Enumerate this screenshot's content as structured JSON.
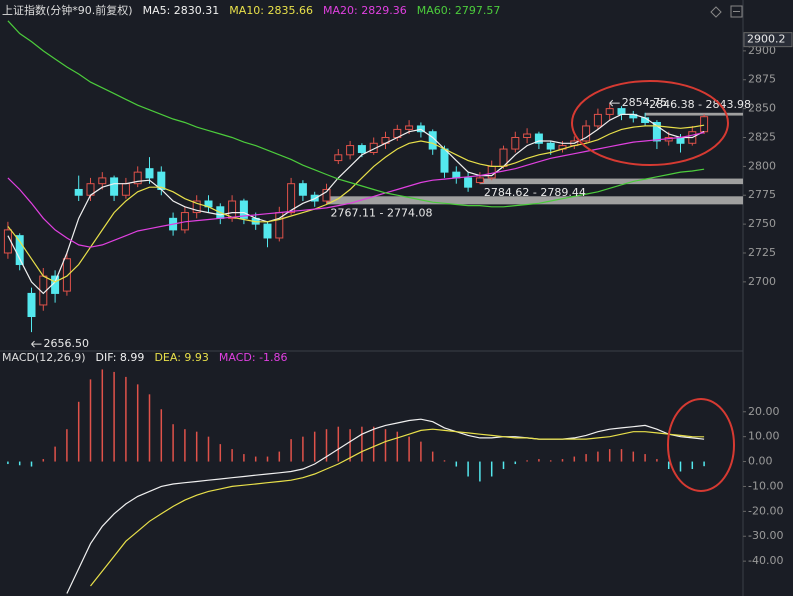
{
  "chart_data": [
    {
      "type": "candlestick",
      "title": "上证指数(分钟*90.前复权)",
      "up_color": "#e0524a",
      "down_color": "#54e8ee",
      "open": [
        2725,
        2740,
        2690,
        2680,
        2705,
        2692,
        2780,
        2775,
        2785,
        2790,
        2775,
        2785,
        2798,
        2795,
        2755,
        2745,
        2760,
        2770,
        2765,
        2755,
        2770,
        2755,
        2750,
        2738,
        2760,
        2785,
        2775,
        2770,
        2805,
        2810,
        2818,
        2812,
        2820,
        2825,
        2832,
        2835,
        2830,
        2815,
        2795,
        2790,
        2786,
        2790,
        2800,
        2815,
        2825,
        2828,
        2820,
        2815,
        2818,
        2822,
        2835,
        2845,
        2850,
        2845,
        2842,
        2838,
        2822,
        2825,
        2820,
        2830
      ],
      "high": [
        2752,
        2742,
        2695,
        2712,
        2710,
        2726,
        2792,
        2790,
        2795,
        2792,
        2790,
        2800,
        2808,
        2800,
        2760,
        2765,
        2775,
        2775,
        2768,
        2775,
        2772,
        2760,
        2752,
        2765,
        2790,
        2788,
        2778,
        2785,
        2815,
        2822,
        2820,
        2825,
        2830,
        2836,
        2840,
        2838,
        2832,
        2818,
        2800,
        2795,
        2795,
        2805,
        2818,
        2830,
        2833,
        2830,
        2822,
        2822,
        2826,
        2840,
        2850,
        2854.75,
        2852,
        2848,
        2846.38,
        2840,
        2830,
        2828,
        2835,
        2845
      ],
      "low": [
        2720,
        2710,
        2656.5,
        2675,
        2682,
        2688,
        2770,
        2770,
        2780,
        2770,
        2772,
        2782,
        2785,
        2775,
        2740,
        2742,
        2755,
        2760,
        2750,
        2752,
        2750,
        2745,
        2730,
        2735,
        2758,
        2770,
        2765,
        2767.11,
        2802,
        2806,
        2808,
        2810,
        2815,
        2822,
        2828,
        2825,
        2810,
        2790,
        2785,
        2778,
        2784.62,
        2788,
        2798,
        2812,
        2820,
        2815,
        2810,
        2812,
        2815,
        2820,
        2832,
        2840,
        2840,
        2838,
        2835,
        2815,
        2818,
        2812,
        2818,
        2828
      ],
      "close": [
        2745,
        2715,
        2670,
        2705,
        2690,
        2720,
        2775,
        2785,
        2790,
        2775,
        2785,
        2795,
        2790,
        2780,
        2745,
        2760,
        2770,
        2765,
        2755,
        2770,
        2755,
        2750,
        2738,
        2760,
        2785,
        2775,
        2770,
        2780,
        2810,
        2818,
        2812,
        2820,
        2825,
        2832,
        2835,
        2830,
        2815,
        2795,
        2790,
        2782,
        2790,
        2800,
        2815,
        2825,
        2828,
        2820,
        2815,
        2818,
        2822,
        2835,
        2845,
        2850,
        2845,
        2842,
        2838,
        2822,
        2825,
        2820,
        2830,
        2843
      ],
      "series": [
        {
          "name": "MA5: 2830.31",
          "color": "#f0f0f0",
          "values": [
            2740,
            2720,
            2700,
            2690,
            2700,
            2725,
            2755,
            2775,
            2782,
            2785,
            2785,
            2787,
            2788,
            2780,
            2770,
            2765,
            2762,
            2760,
            2758,
            2760,
            2760,
            2755,
            2752,
            2755,
            2762,
            2768,
            2772,
            2778,
            2790,
            2800,
            2810,
            2815,
            2820,
            2825,
            2830,
            2832,
            2825,
            2815,
            2805,
            2795,
            2792,
            2792,
            2800,
            2810,
            2818,
            2822,
            2822,
            2820,
            2820,
            2825,
            2832,
            2840,
            2845,
            2845,
            2842,
            2835,
            2828,
            2825,
            2825,
            2830.31
          ]
        },
        {
          "name": "MA10: 2835.66",
          "color": "#e8e04a",
          "values": [
            2748,
            2735,
            2720,
            2705,
            2700,
            2705,
            2715,
            2730,
            2745,
            2760,
            2770,
            2778,
            2782,
            2782,
            2778,
            2772,
            2768,
            2765,
            2760,
            2756,
            2754,
            2752,
            2752,
            2754,
            2757,
            2760,
            2763,
            2767,
            2772,
            2780,
            2790,
            2800,
            2808,
            2815,
            2820,
            2822,
            2820,
            2815,
            2810,
            2805,
            2802,
            2800,
            2800,
            2803,
            2807,
            2810,
            2812,
            2815,
            2818,
            2820,
            2823,
            2828,
            2832,
            2834,
            2835,
            2835,
            2834,
            2833,
            2834,
            2835.66
          ]
        },
        {
          "name": "MA20: 2829.36",
          "color": "#e040e0",
          "values": [
            2790,
            2780,
            2768,
            2755,
            2745,
            2738,
            2732,
            2730,
            2732,
            2736,
            2740,
            2744,
            2746,
            2748,
            2750,
            2752,
            2753,
            2754,
            2755,
            2756,
            2757,
            2758,
            2759,
            2760,
            2761,
            2762,
            2763,
            2764,
            2766,
            2768,
            2771,
            2774,
            2777,
            2780,
            2783,
            2786,
            2788,
            2789,
            2790,
            2791,
            2792,
            2794,
            2796,
            2798,
            2801,
            2804,
            2807,
            2809,
            2811,
            2813,
            2815,
            2817,
            2819,
            2821,
            2822,
            2823,
            2824,
            2825,
            2827,
            2829.36
          ]
        },
        {
          "name": "MA60: 2797.57",
          "color": "#4ccc3c",
          "values": [
            2926,
            2915,
            2908,
            2900,
            2893,
            2886,
            2880,
            2873,
            2868,
            2863,
            2858,
            2853,
            2849,
            2845,
            2841,
            2838,
            2834,
            2831,
            2828,
            2825,
            2821,
            2818,
            2814,
            2810,
            2806,
            2801,
            2797,
            2793,
            2789,
            2786,
            2783,
            2780,
            2777,
            2775,
            2773,
            2771,
            2769,
            2768,
            2767,
            2766,
            2766,
            2765,
            2765,
            2766,
            2767,
            2768,
            2770,
            2772,
            2774,
            2776,
            2778,
            2781,
            2784,
            2787,
            2789,
            2791,
            2793,
            2795,
            2796,
            2797.57
          ]
        }
      ],
      "ylim": [
        2641,
        2925
      ],
      "yticks": [
        2700,
        2725,
        2750,
        2775,
        2800,
        2825,
        2850,
        2875,
        2900
      ],
      "price_marker": 2900.2,
      "annotations": [
        {
          "label": "2656.50",
          "value": 2656.5
        },
        {
          "label": "2854.75",
          "value": 2854.75
        }
      ],
      "zones": [
        {
          "label": "2846.38 - 2843.98",
          "values": [
            2846.38,
            2843.98
          ]
        },
        {
          "label": "2784.62 - 2789.44",
          "values": [
            2784.62,
            2789.44
          ]
        },
        {
          "label": "2767.11 - 2774.08",
          "values": [
            2767.11,
            2774.08
          ]
        }
      ]
    },
    {
      "type": "macd",
      "title": "MACD(12,26,9)",
      "up_color": "#e0524a",
      "down_color": "#54e8ee",
      "series": [
        {
          "name": "DIF: 8.99",
          "color": "#f0f0f0",
          "kind": "line",
          "values": [
            null,
            null,
            null,
            null,
            null,
            -53,
            -43,
            -33,
            -26,
            -21,
            -17,
            -14,
            -12,
            -10,
            -9,
            -8.5,
            -8,
            -7.5,
            -7,
            -6.5,
            -6,
            -5.5,
            -5,
            -4.5,
            -4,
            -3,
            -1,
            2,
            5,
            8,
            11,
            13,
            14.5,
            15.5,
            16.5,
            17,
            16,
            13.5,
            12,
            10.5,
            9.5,
            9.5,
            10,
            10,
            9.5,
            9,
            9,
            9,
            9.5,
            10.5,
            12,
            13,
            13.5,
            14,
            14.5,
            13,
            11,
            10,
            9.5,
            8.99
          ]
        },
        {
          "name": "DEA: 9.93",
          "color": "#e8e04a",
          "kind": "line",
          "values": [
            null,
            null,
            null,
            null,
            null,
            null,
            null,
            -50,
            -44,
            -38,
            -32,
            -28,
            -24,
            -21,
            -18,
            -15.5,
            -13.5,
            -12,
            -11,
            -10,
            -9.5,
            -9,
            -8.5,
            -8,
            -7.5,
            -6.5,
            -5,
            -3,
            -1,
            1.5,
            4,
            6,
            8,
            9.5,
            11,
            12.5,
            13,
            12.5,
            12,
            11.5,
            11,
            10.5,
            10,
            9.5,
            9.5,
            9,
            9,
            9,
            9,
            9,
            9.5,
            10,
            11,
            12,
            12,
            11.5,
            11,
            10.5,
            10,
            9.93
          ]
        },
        {
          "name": "MACD: -1.86",
          "color": "#e040e0",
          "kind": "bar",
          "values": [
            -1,
            -1.5,
            -2,
            1,
            6,
            13,
            24,
            33,
            37,
            36,
            34,
            31,
            27,
            21,
            15,
            13,
            12,
            10,
            7,
            5,
            3,
            2,
            2,
            4,
            9,
            10,
            12,
            13,
            14,
            13,
            14,
            14,
            13,
            12,
            10,
            8,
            4,
            0.5,
            -2,
            -6,
            -8,
            -6,
            -3,
            -1,
            0.5,
            1,
            0.5,
            1,
            2,
            3,
            4,
            5,
            5,
            4,
            3,
            1,
            -3,
            -4,
            -3,
            -1.86
          ]
        }
      ],
      "ylim": [
        -54,
        44
      ],
      "yticks": [
        {
          "value": 20,
          "label": "20.00"
        },
        {
          "value": 10,
          "label": "10.00"
        },
        {
          "value": 0,
          "label": "0.00"
        },
        {
          "value": -10,
          "label": "-10.00"
        },
        {
          "value": -20,
          "label": "-20.00"
        },
        {
          "value": -30,
          "label": "-30.00"
        },
        {
          "value": -40,
          "label": "-40.00"
        }
      ]
    }
  ]
}
